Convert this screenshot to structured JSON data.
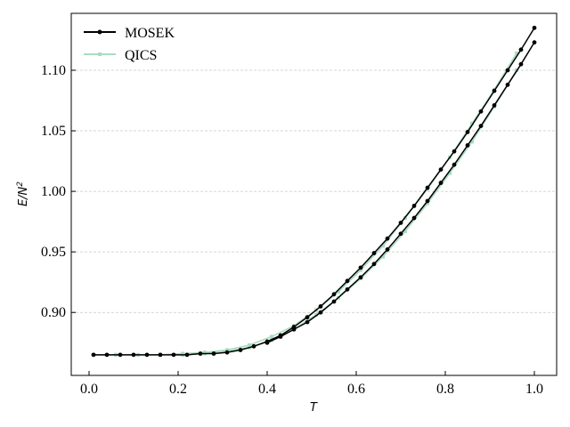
{
  "chart_data": {
    "type": "line",
    "title": "",
    "xlabel": "T",
    "ylabel_base": "E/N",
    "ylabel_sup": "2",
    "xlim": [
      -0.04,
      1.05
    ],
    "ylim": [
      0.848,
      1.147
    ],
    "xticks": [
      0.0,
      0.2,
      0.4,
      0.6,
      0.8,
      1.0
    ],
    "xtick_labels": [
      "0.0",
      "0.2",
      "0.4",
      "0.6",
      "0.8",
      "1.0"
    ],
    "yticks": [
      0.9,
      0.95,
      1.0,
      1.05,
      1.1
    ],
    "ytick_labels": [
      "0.90",
      "0.95",
      "1.00",
      "1.05",
      "1.10"
    ],
    "grid": "horizontal dashed",
    "legend_position": "top-left",
    "series": [
      {
        "name": "MOSEK",
        "color": "#000000",
        "marker": "circle",
        "x": [
          0.01,
          0.04,
          0.07,
          0.1,
          0.13,
          0.16,
          0.19,
          0.22,
          0.25,
          0.28,
          0.31,
          0.34,
          0.37,
          0.4,
          0.43,
          0.46,
          0.49,
          0.52,
          0.55,
          0.58,
          0.61,
          0.64,
          0.67,
          0.7,
          0.73,
          0.76,
          0.79,
          0.82,
          0.85,
          0.88,
          0.91,
          0.94,
          0.97,
          1.0
        ],
        "y": [
          0.865,
          0.865,
          0.865,
          0.865,
          0.865,
          0.865,
          0.865,
          0.865,
          0.866,
          0.866,
          0.867,
          0.869,
          0.872,
          0.876,
          0.881,
          0.888,
          0.896,
          0.905,
          0.915,
          0.926,
          0.937,
          0.949,
          0.961,
          0.974,
          0.988,
          1.003,
          1.018,
          1.033,
          1.049,
          1.066,
          1.083,
          1.1,
          1.117,
          1.135
        ]
      },
      {
        "name": "MOSEK",
        "color": "#000000",
        "marker": "circle",
        "x": [
          0.4,
          0.43,
          0.46,
          0.49,
          0.52,
          0.55,
          0.58,
          0.61,
          0.64,
          0.67,
          0.7,
          0.73,
          0.76,
          0.79,
          0.82,
          0.85,
          0.88,
          0.91,
          0.94,
          0.97,
          1.0
        ],
        "y": [
          0.875,
          0.88,
          0.886,
          0.892,
          0.9,
          0.909,
          0.919,
          0.929,
          0.94,
          0.952,
          0.965,
          0.978,
          0.992,
          1.007,
          1.022,
          1.038,
          1.054,
          1.071,
          1.088,
          1.105,
          1.123
        ]
      },
      {
        "name": "QICS",
        "color": "#a8dcc0",
        "marker": "square",
        "x": [
          0.01,
          0.06,
          0.11,
          0.16,
          0.21,
          0.26,
          0.31,
          0.36,
          0.41,
          0.46,
          0.51,
          0.56,
          0.61,
          0.66,
          0.71,
          0.76,
          0.81,
          0.86,
          0.91,
          0.96
        ],
        "y": [
          0.865,
          0.865,
          0.865,
          0.865,
          0.865,
          0.866,
          0.868,
          0.871,
          0.877,
          0.886,
          0.898,
          0.912,
          0.928,
          0.946,
          0.967,
          0.99,
          1.015,
          1.041,
          1.07,
          1.1
        ]
      },
      {
        "name": "QICS",
        "color": "#a8dcc0",
        "marker": "square",
        "x": [
          0.01,
          0.06,
          0.11,
          0.16,
          0.21,
          0.26,
          0.31,
          0.36,
          0.41,
          0.46,
          0.51,
          0.56,
          0.61,
          0.66,
          0.71,
          0.76,
          0.81,
          0.86,
          0.91,
          0.96
        ],
        "y": [
          0.865,
          0.865,
          0.865,
          0.865,
          0.866,
          0.867,
          0.869,
          0.873,
          0.88,
          0.889,
          0.902,
          0.917,
          0.935,
          0.955,
          0.978,
          1.002,
          1.028,
          1.056,
          1.084,
          1.114
        ]
      }
    ],
    "legend": [
      {
        "label": "MOSEK",
        "color": "#000000",
        "marker": "circle"
      },
      {
        "label": "QICS",
        "color": "#a8dcc0",
        "marker": "square"
      }
    ]
  }
}
